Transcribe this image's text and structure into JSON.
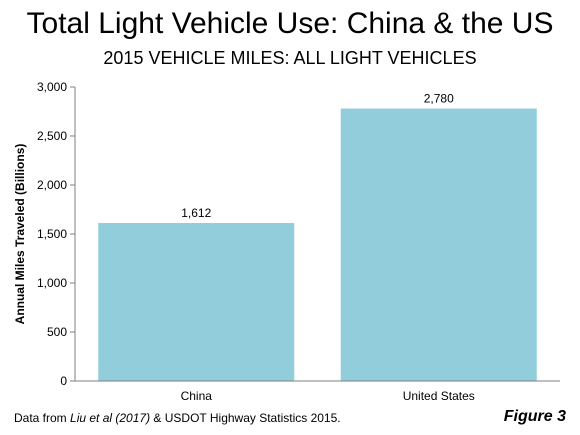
{
  "title": "Total Light Vehicle Use: China & the US",
  "subtitle": "2015 VEHICLE MILES: ALL LIGHT VEHICLES",
  "chart_data": {
    "type": "bar",
    "categories": [
      "China",
      "United States"
    ],
    "values": [
      1612,
      2780
    ],
    "data_labels": [
      "1,612",
      "2,780"
    ],
    "ylabel": "Annual Miles Traveled (Billions)",
    "xlabel": "",
    "ylim": [
      0,
      3000
    ],
    "yticks": [
      0,
      500,
      1000,
      1500,
      2000,
      2500,
      3000
    ],
    "ytick_labels": [
      "0",
      "500",
      "1,000",
      "1,500",
      "2,000",
      "2,500",
      "3,000"
    ],
    "grid": false,
    "legend": "none",
    "bar_color": "#92CDDC"
  },
  "footnote": {
    "prefix": "Data from ",
    "source_italic": "Liu et al (2017)",
    "suffix": " & USDOT Highway Statistics 2015."
  },
  "figure_label": "Figure 3"
}
